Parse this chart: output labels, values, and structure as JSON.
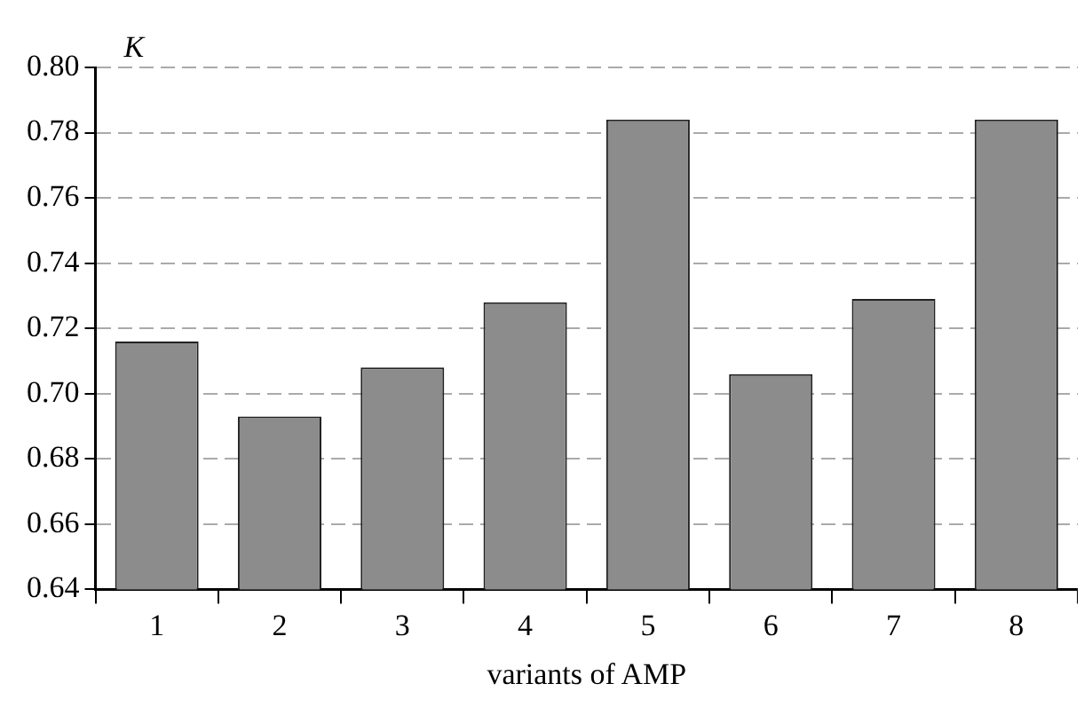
{
  "chart_data": {
    "type": "bar",
    "ylabel": "K",
    "xlabel": "variants of AMP",
    "categories": [
      "1",
      "2",
      "3",
      "4",
      "5",
      "6",
      "7",
      "8"
    ],
    "values": [
      0.716,
      0.693,
      0.708,
      0.728,
      0.784,
      0.706,
      0.729,
      0.784
    ],
    "color": "#8c8c8c",
    "ylim": [
      0.64,
      0.8
    ],
    "yticks": [
      0.64,
      0.66,
      0.68,
      {
        "value": 0.7,
        "label": "0.70"
      },
      0.72,
      0.74,
      0.76,
      0.78,
      {
        "value": 0.8,
        "label": "0.80"
      }
    ],
    "grid": "y"
  }
}
